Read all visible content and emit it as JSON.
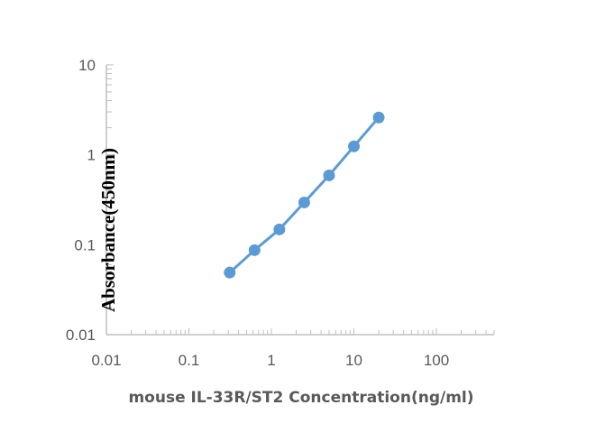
{
  "chart_data": {
    "type": "line",
    "xlabel": "mouse IL-33R/ST2 Concentration(ng/ml)",
    "ylabel": "Absorbance(450nm)",
    "x_scale": "log",
    "y_scale": "log",
    "xlim": [
      0.01,
      500
    ],
    "ylim": [
      0.01,
      10
    ],
    "x_ticks": [
      "0.01",
      "0.1",
      "1",
      "10",
      "100"
    ],
    "y_ticks": [
      "0.01",
      "0.1",
      "1",
      "10"
    ],
    "grid": false,
    "markers": true,
    "series": [
      {
        "x": [
          0.3125,
          0.625,
          1.25,
          2.5,
          5,
          10,
          20
        ],
        "y": [
          0.049,
          0.087,
          0.148,
          0.295,
          0.59,
          1.24,
          2.6
        ]
      }
    ],
    "colors": {
      "series": "#5b9bd5",
      "axis": "#bfbfbf"
    }
  }
}
